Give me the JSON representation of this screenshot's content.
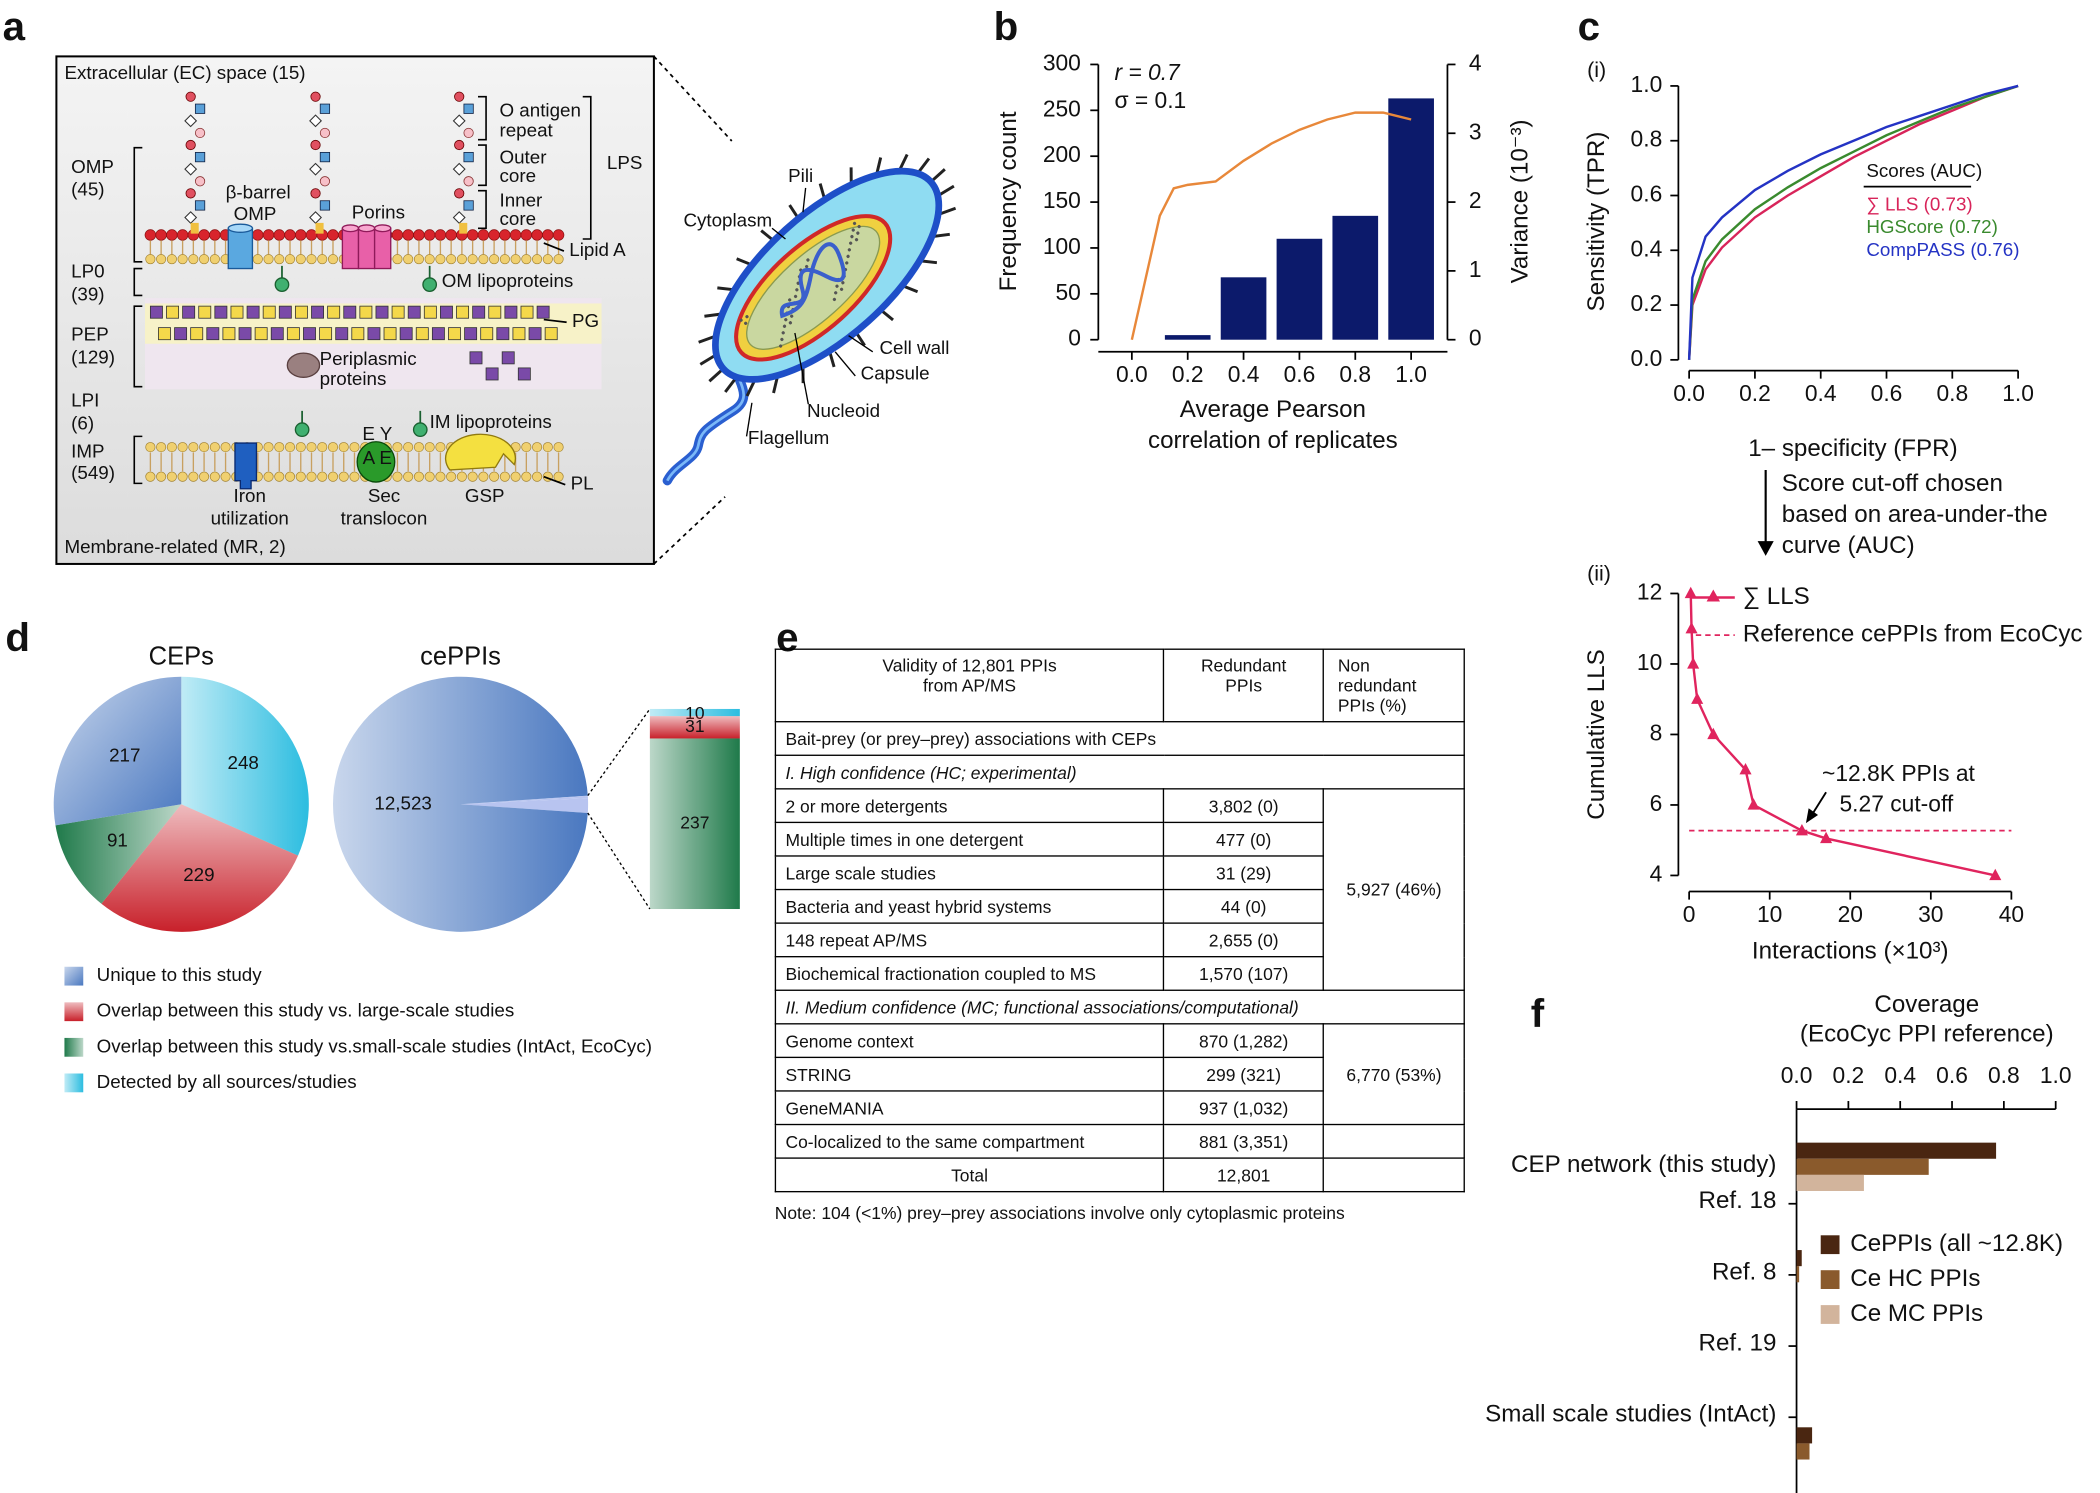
{
  "panel_labels": [
    "a",
    "b",
    "c",
    "d",
    "e",
    "f"
  ],
  "panel_a": {
    "labels": [
      "Extracellular (EC) space (15)",
      "OMP",
      "(45)",
      "β-barrel",
      "OMP",
      "Porins",
      "O antigen",
      "repeat",
      "Outer",
      "core",
      "Inner",
      "core",
      "LPS",
      "Lipid A",
      "LP0",
      "(39)",
      "OM lipoproteins",
      "PEP",
      "(129)",
      "PG",
      "Periplasmic",
      "proteins",
      "LPI",
      "(6)",
      "IMP",
      "(549)",
      "IM lipoproteins",
      "E Y",
      "A E",
      "Iron",
      "utilization",
      "Sec",
      "translocon",
      "GSP",
      "PL",
      "Membrane-related (MR, 2)",
      "Pili",
      "Cytoplasm",
      "Cell wall",
      "Capsule",
      "Nucleoid",
      "Flagellum"
    ]
  },
  "chart_data": [
    {
      "type": "bar",
      "ylabel": "Frequency count",
      "y2label": "Variance (10⁻³)",
      "xlabel": [
        "Average Pearson",
        "correlation of replicates"
      ],
      "annotations": [
        "r = 0.7",
        "σ = 0.1"
      ],
      "xlim": [
        -0.12,
        1.13
      ],
      "xticks": [
        {
          "value": 0,
          "label": "0.0"
        },
        {
          "value": 0.2,
          "label": "0.2"
        },
        {
          "value": 0.4,
          "label": "0.4"
        },
        {
          "value": 0.6,
          "label": "0.6"
        },
        {
          "value": 0.8,
          "label": "0.8"
        },
        {
          "value": 1,
          "label": "1.0"
        }
      ],
      "ylim": [
        0,
        300
      ],
      "yticks": [
        0,
        50,
        100,
        150,
        200,
        250,
        300
      ],
      "y2lim": [
        0,
        4
      ],
      "y2ticks": [
        0,
        1,
        2,
        3,
        4
      ],
      "series": [
        {
          "type": "bar",
          "x": [
            0,
            0.2,
            0.4,
            0.6,
            0.8,
            1
          ],
          "values": [
            0,
            5,
            68,
            110,
            135,
            263
          ],
          "color": "#0c1a6b"
        },
        {
          "type": "line",
          "axis": "y2",
          "x": [
            0,
            0.05,
            0.1,
            0.15,
            0.2,
            0.3,
            0.4,
            0.5,
            0.6,
            0.7,
            0.8,
            0.9,
            1
          ],
          "values": [
            0,
            0.9,
            1.8,
            2.2,
            2.25,
            2.3,
            2.6,
            2.85,
            3.05,
            3.2,
            3.3,
            3.3,
            3.2
          ],
          "color": "#e8883a"
        }
      ]
    },
    {
      "type": "line",
      "label": "(i)",
      "xlabel": "1– specificity (FPR)",
      "ylabel": "Sensitivity (TPR)",
      "legend_title": "Scores (AUC)",
      "xlim": [
        0,
        1
      ],
      "ylim": [
        0,
        1
      ],
      "xticks": [
        {
          "value": 0,
          "label": "0.0"
        },
        {
          "value": 0.2,
          "label": "0.2"
        },
        {
          "value": 0.4,
          "label": "0.4"
        },
        {
          "value": 0.6,
          "label": "0.6"
        },
        {
          "value": 0.8,
          "label": "0.8"
        },
        {
          "value": 1,
          "label": "1.0"
        }
      ],
      "yticks": [
        {
          "value": 0,
          "label": "0.0"
        },
        {
          "value": 0.2,
          "label": "0.2"
        },
        {
          "value": 0.4,
          "label": "0.4"
        },
        {
          "value": 0.6,
          "label": "0.6"
        },
        {
          "value": 0.8,
          "label": "0.8"
        },
        {
          "value": 1,
          "label": "1.0"
        }
      ],
      "x": [
        0,
        0.01,
        0.05,
        0.1,
        0.2,
        0.3,
        0.4,
        0.5,
        0.6,
        0.7,
        0.8,
        0.9,
        1
      ],
      "series": [
        {
          "name": "∑ LLS (0.73)",
          "color": "#d8245a",
          "values": [
            0,
            0.2,
            0.33,
            0.41,
            0.52,
            0.6,
            0.67,
            0.74,
            0.8,
            0.86,
            0.91,
            0.96,
            1
          ]
        },
        {
          "name": "HGScore (0.72)",
          "color": "#3a8a2e",
          "values": [
            0,
            0.22,
            0.36,
            0.44,
            0.55,
            0.63,
            0.7,
            0.76,
            0.82,
            0.87,
            0.92,
            0.96,
            1
          ]
        },
        {
          "name": "CompPASS (0.76)",
          "color": "#2433c4",
          "values": [
            0,
            0.3,
            0.45,
            0.52,
            0.62,
            0.69,
            0.75,
            0.8,
            0.85,
            0.89,
            0.93,
            0.97,
            1
          ]
        }
      ],
      "annotations": [
        "Score cut-off chosen",
        "based on area-under-the",
        "curve (AUC)"
      ]
    },
    {
      "type": "line",
      "label": "(ii)",
      "xlabel": "Interactions (×10³)",
      "ylabel": "Cumulative LLS",
      "xlim": [
        0,
        40
      ],
      "ylim": [
        4,
        12
      ],
      "xticks": [
        0,
        10,
        20,
        30,
        40
      ],
      "yticks": [
        4,
        6,
        8,
        10,
        12
      ],
      "series": [
        {
          "name": "∑ LLS",
          "color": "#e0245e",
          "marker": "triangle",
          "x": [
            0.2,
            0.3,
            0.5,
            1,
            3,
            7,
            8,
            14,
            17,
            38
          ],
          "values": [
            12,
            11,
            10,
            9,
            8,
            7,
            6,
            5.27,
            5.05,
            4
          ]
        },
        {
          "name": "Reference cePPIs from EcoCyc",
          "color": "#e0245e",
          "type": "hline",
          "style": "dashed",
          "values": [
            5.27
          ]
        }
      ],
      "annotations": [
        "~12.8K PPIs at",
        "5.27 cut-off"
      ]
    },
    {
      "type": "pie",
      "categories": [
        "Unique to this study",
        "Overlap between this study vs. large-scale studies",
        "Overlap between this study vs.small-scale studies (IntAct, EcoCyc)",
        "Detected by all sources/studies"
      ],
      "colors": [
        "#4a78c0",
        "#c8202a",
        "#1f7a4a",
        "#2cbde0"
      ],
      "pies": [
        {
          "title": "CEPs",
          "values": [
            217,
            229,
            91,
            248
          ]
        },
        {
          "title": "cePPIs",
          "values": [
            12523,
            31,
            237,
            10
          ],
          "value_labels": [
            "12,523",
            "31",
            "237",
            "10"
          ]
        }
      ]
    },
    {
      "type": "bar",
      "orientation": "horizontal",
      "title": "Coverage",
      "subtitle": "(EcoCyc PPI reference)",
      "xlim": [
        0,
        1
      ],
      "xticks": [
        {
          "value": 0,
          "label": "0.0"
        },
        {
          "value": 0.2,
          "label": "0.2"
        },
        {
          "value": 0.4,
          "label": "0.4"
        },
        {
          "value": 0.6,
          "label": "0.6"
        },
        {
          "value": 0.8,
          "label": "0.8"
        },
        {
          "value": 1,
          "label": "1.0"
        }
      ],
      "categories": [
        "CEP network (this study)",
        "Ref. 18",
        "Ref. 8",
        "Ref. 19",
        "Small scale studies (IntAct)"
      ],
      "series": [
        {
          "name": "CePPIs (all ~12.8K)",
          "color": "#4a2611",
          "values": [
            0.77,
            0,
            0.02,
            0,
            0.06
          ]
        },
        {
          "name": "Ce HC PPIs",
          "color": "#8a5a2c",
          "values": [
            0.51,
            0,
            0.01,
            0,
            0.05
          ]
        },
        {
          "name": "Ce MC PPIs",
          "color": "#d2b49c",
          "values": [
            0.26,
            0,
            0,
            0,
            0
          ]
        }
      ]
    }
  ],
  "table": {
    "header": [
      "Validity of 12,801 PPIs from AP/MS",
      "Redundant PPIs",
      "Non redundant PPIs (%)"
    ],
    "caption": "Bait-prey (or prey–prey) associations with CEPs",
    "sections": [
      {
        "title": "I. High confidence (HC; experimental)",
        "rows": [
          [
            "2 or more detergents",
            "3,802 (0)"
          ],
          [
            "Multiple times in one detergent",
            "477 (0)"
          ],
          [
            "Large scale studies",
            "31 (29)"
          ],
          [
            "Bacteria and yeast hybrid systems",
            "44 (0)"
          ],
          [
            "148 repeat AP/MS",
            "2,655 (0)"
          ],
          [
            "Biochemical fractionation coupled to MS",
            "1,570 (107)"
          ]
        ],
        "summary": "5,927 (46%)"
      },
      {
        "title": "II. Medium confidence (MC; functional associations/computational)",
        "rows": [
          [
            "Genome context",
            "870 (1,282)"
          ],
          [
            "STRING",
            "299 (321)"
          ],
          [
            "GeneMANIA",
            "937 (1,032)"
          ],
          [
            "Co-localized to the same compartment",
            "881 (3,351)"
          ]
        ],
        "summary": "6,770 (53%)"
      }
    ],
    "total": [
      "Total",
      "12,801"
    ],
    "note": "Note: 104 (<1%) prey–prey associations involve only cytoplasmic proteins"
  }
}
